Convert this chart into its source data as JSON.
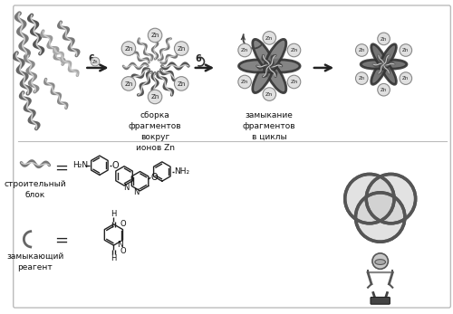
{
  "background_color": "#ffffff",
  "border_color": "#bbbbbb",
  "fig_width": 5.0,
  "fig_height": 3.47,
  "dpi": 100,
  "label_sborka": "сборка\nфрагментов\nвокруг\nионов Zn",
  "label_zamyk": "замыкание\nфрагментов\nв циклы",
  "label_stroitblock": "строительный\nблок",
  "label_zamreagent": "замыкающий\nреагент",
  "arr_label1": "6",
  "arr_label2": "6"
}
